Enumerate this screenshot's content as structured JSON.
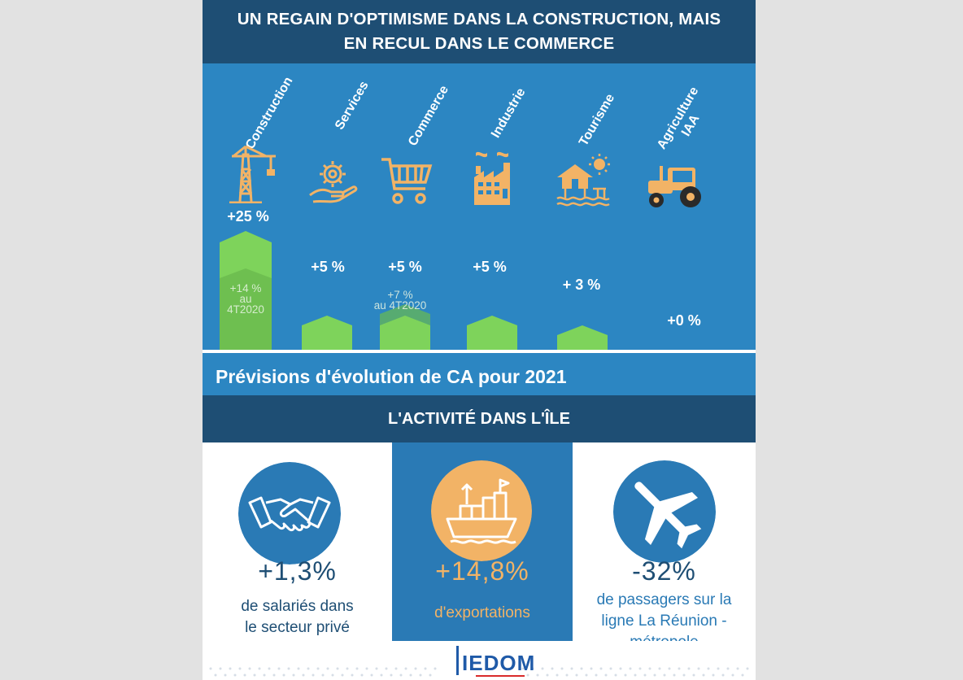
{
  "header": {
    "line1": "UN REGAIN D'OPTIMISME DANS LA CONSTRUCTION, MAIS",
    "line2": "EN RECUL DANS LE COMMERCE"
  },
  "sectors": [
    {
      "label": "Construction",
      "icon": "crane-icon",
      "value": "+25 %",
      "forecast_pct": 25,
      "previous": "+14 %",
      "previous_period": "au 4T2020",
      "previous_pct": 14
    },
    {
      "label": "Services",
      "icon": "gear-hand-icon",
      "value": "+5 %",
      "forecast_pct": 5
    },
    {
      "label": "Commerce",
      "icon": "shopping-cart-icon",
      "value": "+5 %",
      "forecast_pct": 5,
      "previous": "+7 %",
      "previous_period": "au 4T2020",
      "previous_pct": 7
    },
    {
      "label": "Industrie",
      "icon": "factory-icon",
      "value": "+5 %",
      "forecast_pct": 5
    },
    {
      "label": "Tourisme",
      "icon": "beach-house-sun-icon",
      "value": "+ 3 %",
      "forecast_pct": 3
    },
    {
      "label_line1": "Agriculture",
      "label_line2": "IAA",
      "icon": "tractor-icon",
      "value": "+0 %",
      "forecast_pct": 0
    }
  ],
  "caption": "Prévisions d'évolution de CA pour 2021",
  "subtitle": "L'ACTIVITÉ DANS L'ÎLE",
  "stats": [
    {
      "icon": "handshake-icon",
      "value": "+1,3%",
      "line1": "de salariés dans",
      "line2": "le secteur privé"
    },
    {
      "icon": "cargo-ship-icon",
      "value": "+14,8%",
      "line1": "d'exportations"
    },
    {
      "icon": "airplane-icon",
      "value": "-32%",
      "line1": "de passagers sur la",
      "line2": "ligne La Réunion -",
      "line3": "métropole"
    }
  ],
  "logo": {
    "text": "IEDOM"
  },
  "colors": {
    "navy": "#1e4e74",
    "blue": "#2c86c2",
    "green": "#7ed35b",
    "orange": "#f2b366",
    "stat_blue": "#2a7ab5"
  }
}
